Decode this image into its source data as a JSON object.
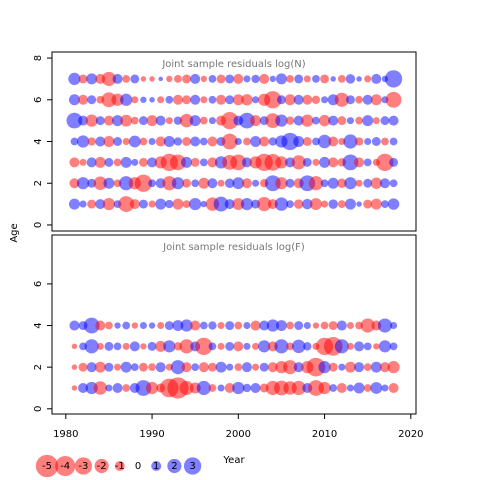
{
  "chart_data": [
    {
      "type": "bubble",
      "title": "Joint sample residuals log(N)",
      "ylabel": "Age",
      "x": [
        1981,
        1982,
        1983,
        1984,
        1985,
        1986,
        1987,
        1988,
        1989,
        1990,
        1991,
        1992,
        1993,
        1994,
        1995,
        1996,
        1997,
        1998,
        1999,
        2000,
        2001,
        2002,
        2003,
        2004,
        2005,
        2006,
        2007,
        2008,
        2009,
        2010,
        2011,
        2012,
        2013,
        2014,
        2015,
        2016,
        2017,
        2018
      ],
      "ages": [
        1,
        2,
        3,
        4,
        5,
        6,
        7
      ],
      "values": [
        [
          1.2,
          0.5,
          -0.8,
          1.0,
          -1.5,
          0.6,
          -2.5,
          -1.0,
          0.8,
          -0.5,
          1.2,
          0.7,
          -1.2,
          -0.6,
          1.5,
          0.4,
          -1.8,
          2.2,
          1.0,
          -1.4,
          1.5,
          0.8,
          -2.0,
          -1.0,
          1.8,
          0.6,
          -0.9,
          1.1,
          -1.4,
          -0.5,
          0.9,
          -0.6,
          1.2,
          0.3,
          -0.8,
          -1.2,
          0.6,
          1.3
        ],
        [
          -1.0,
          1.5,
          0.8,
          -1.8,
          1.2,
          -0.6,
          2.0,
          -1.5,
          -3.0,
          0.6,
          1.0,
          -2.0,
          1.5,
          -0.8,
          0.6,
          -1.2,
          1.0,
          -0.5,
          0.9,
          1.4,
          -1.0,
          0.5,
          -0.7,
          2.5,
          -1.5,
          0.8,
          -1.0,
          2.5,
          -2.0,
          0.6,
          1.2,
          -0.9,
          1.5,
          -0.5,
          0.8,
          -1.3,
          1.0,
          0.6
        ],
        [
          -1.0,
          -0.5,
          1.0,
          -1.2,
          0.8,
          -0.6,
          1.2,
          0.5,
          -0.8,
          1.0,
          -1.5,
          -3.0,
          -2.5,
          1.2,
          -0.8,
          0.6,
          -1.0,
          1.5,
          -2.2,
          -2.5,
          1.0,
          -1.5,
          -3.0,
          -2.8,
          -1.5,
          1.0,
          -2.0,
          0.8,
          -0.5,
          1.2,
          -1.0,
          -0.7,
          2.5,
          -1.0,
          0.6,
          -0.5,
          -3.0,
          0.8
        ],
        [
          0.6,
          1.5,
          -0.7,
          1.0,
          -1.2,
          0.8,
          -0.5,
          1.4,
          -0.6,
          0.5,
          -1.0,
          1.2,
          0.7,
          -0.8,
          1.0,
          0.6,
          -1.0,
          0.8,
          -2.5,
          0.5,
          -0.6,
          1.2,
          -1.0,
          0.7,
          1.5,
          3.0,
          1.2,
          -0.8,
          0.6,
          1.8,
          -1.0,
          -0.5,
          2.0,
          -0.7,
          0.5,
          0.8,
          -0.6,
          0.6
        ],
        [
          2.5,
          1.0,
          -1.5,
          0.8,
          -1.0,
          1.2,
          -1.4,
          -0.6,
          0.8,
          -1.2,
          1.0,
          -0.5,
          0.7,
          -1.8,
          1.2,
          -0.6,
          0.5,
          -1.0,
          -3.0,
          1.0,
          2.5,
          -1.2,
          0.8,
          -2.2,
          1.5,
          -0.7,
          1.0,
          -1.5,
          0.6,
          -1.3,
          1.0,
          -0.8,
          0.5,
          -0.6,
          1.2,
          -0.5,
          0.8,
          1.0
        ],
        [
          1.2,
          -1.0,
          0.8,
          -0.6,
          -2.2,
          -1.5,
          1.5,
          -0.5,
          0.4,
          0.3,
          -0.5,
          0.6,
          -1.0,
          -0.8,
          1.0,
          -0.5,
          0.6,
          -1.0,
          0.8,
          -1.2,
          -1.3,
          0.5,
          -1.5,
          -3.0,
          0.8,
          -1.2,
          1.0,
          -1.0,
          -0.7,
          0.5,
          1.2,
          -2.0,
          0.8,
          -0.6,
          1.0,
          -1.2,
          0.5,
          -2.5
        ],
        [
          1.5,
          -0.8,
          1.2,
          -1.0,
          -2.0,
          1.0,
          -0.6,
          0.8,
          -0.3,
          -0.3,
          0.2,
          -0.4,
          -0.6,
          -0.8,
          1.0,
          -0.4,
          0.6,
          -0.8,
          0.8,
          -1.0,
          0.5,
          0.7,
          -1.0,
          0.4,
          1.2,
          -0.6,
          0.8,
          -0.5,
          0.6,
          -0.8,
          0.3,
          -0.6,
          0.9,
          0.3,
          -0.5,
          1.0,
          0.4,
          3.0
        ]
      ],
      "xlim": [
        1978.4,
        2020.6
      ],
      "ylim": [
        -0.29,
        8.29
      ],
      "yticks": [
        0,
        2,
        4,
        6,
        8
      ],
      "neg_color": "#ff0000",
      "pos_color": "#0000ff"
    },
    {
      "type": "bubble",
      "title": "Joint sample residuals log(F)",
      "xlabel": "Year",
      "x": [
        1981,
        1982,
        1983,
        1984,
        1985,
        1986,
        1987,
        1988,
        1989,
        1990,
        1991,
        1992,
        1993,
        1994,
        1995,
        1996,
        1997,
        1998,
        1999,
        2000,
        2001,
        2002,
        2003,
        2004,
        2005,
        2006,
        2007,
        2008,
        2009,
        2010,
        2011,
        2012,
        2013,
        2014,
        2015,
        2016,
        2017,
        2018
      ],
      "ages": [
        1,
        2,
        3,
        4
      ],
      "values": [
        [
          -0.3,
          1.0,
          1.5,
          -1.8,
          0.5,
          1.0,
          -0.6,
          1.0,
          2.5,
          -1.5,
          -0.8,
          -3.5,
          -4.5,
          -2.0,
          -1.2,
          2.0,
          -0.6,
          0.5,
          -1.0,
          1.5,
          0.7,
          1.0,
          -0.8,
          -2.0,
          -2.2,
          -1.8,
          -2.0,
          1.0,
          -2.5,
          -1.5,
          0.6,
          -1.0,
          0.5,
          1.2,
          -0.6,
          1.4,
          0.5,
          -1.0
        ],
        [
          -0.3,
          -0.8,
          1.0,
          -1.2,
          0.8,
          -0.5,
          1.2,
          0.6,
          -0.8,
          -0.6,
          1.0,
          -0.5,
          2.0,
          -1.0,
          0.6,
          -1.0,
          -0.8,
          1.2,
          0.5,
          -0.6,
          1.0,
          -0.5,
          0.8,
          -1.0,
          -1.5,
          -2.0,
          1.0,
          -1.5,
          -3.5,
          1.5,
          -0.8,
          0.5,
          -1.2,
          1.0,
          -0.6,
          1.2,
          -1.0,
          -1.5
        ],
        [
          -0.3,
          0.6,
          2.0,
          -0.5,
          0.8,
          0.6,
          -0.5,
          1.0,
          -0.4,
          0.8,
          -1.2,
          1.5,
          -0.7,
          -2.0,
          1.0,
          -3.0,
          0.6,
          -0.5,
          0.8,
          -1.0,
          0.5,
          -0.5,
          1.5,
          -1.0,
          2.0,
          -0.6,
          1.8,
          0.7,
          -0.5,
          -3.0,
          -3.5,
          2.0,
          -0.5,
          1.0,
          0.6,
          -0.4,
          1.5,
          0.6
        ],
        [
          1.0,
          0.8,
          2.5,
          -1.0,
          -0.6,
          0.4,
          0.6,
          -0.4,
          0.5,
          0.4,
          -0.5,
          0.8,
          1.2,
          1.5,
          -1.0,
          0.6,
          0.7,
          -0.5,
          0.8,
          -0.6,
          0.5,
          -1.0,
          1.0,
          1.5,
          1.2,
          -0.6,
          0.8,
          0.5,
          -0.4,
          -0.6,
          -0.8,
          1.0,
          -0.5,
          -0.6,
          -2.0,
          -1.0,
          2.0,
          0.5
        ]
      ],
      "xlim": [
        1978.4,
        2020.6
      ],
      "ylim": [
        -0.25,
        8.35
      ],
      "yticks": [
        0,
        2,
        4,
        6
      ],
      "xticks": [
        1980,
        1990,
        2000,
        2010,
        2020
      ],
      "legend_values": [
        -5,
        -4,
        -3,
        -2,
        -1,
        0,
        1,
        2,
        3
      ],
      "neg_color": "#ff0000",
      "pos_color": "#0000ff"
    }
  ]
}
